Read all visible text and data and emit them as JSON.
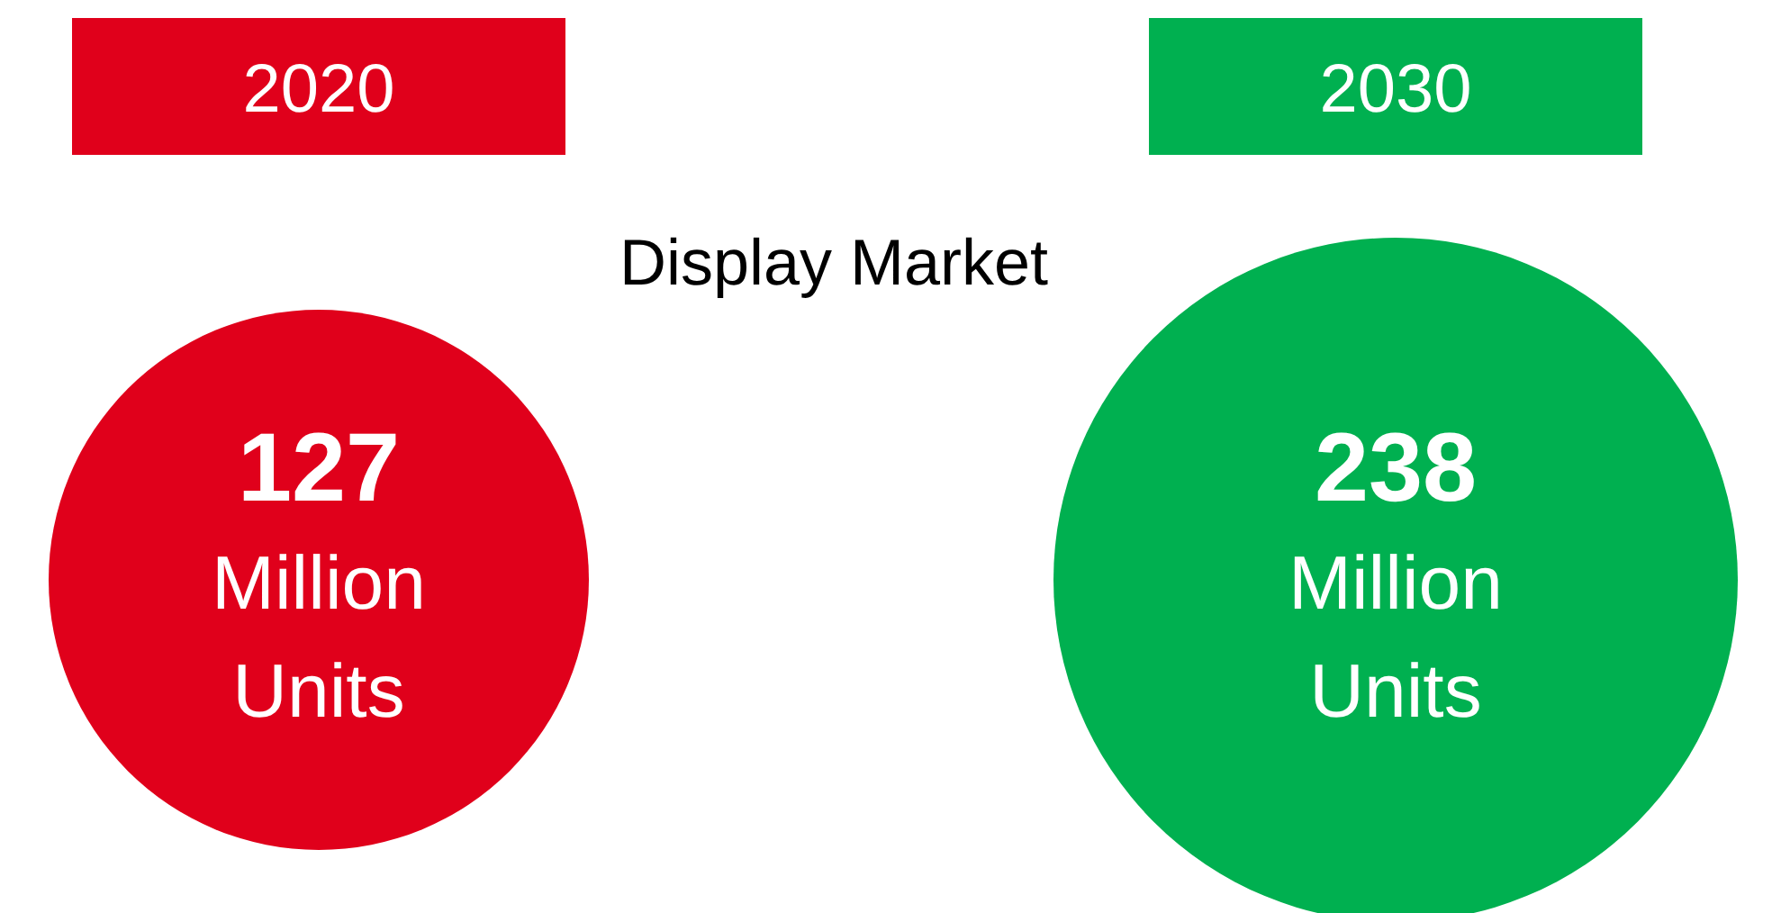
{
  "chart_data": {
    "type": "other",
    "title": "Display Market",
    "categories": [
      "2020",
      "2030"
    ],
    "values": [
      127,
      238
    ],
    "colors": [
      "#e0001b",
      "#00b050"
    ],
    "ylabel": "Million Units",
    "data_labels": true
  }
}
